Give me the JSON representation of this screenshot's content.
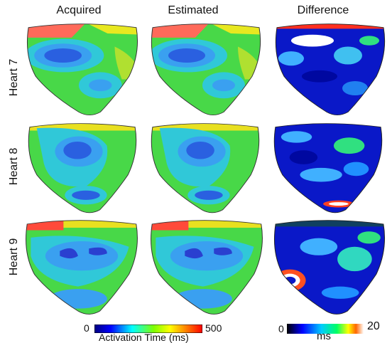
{
  "columns": [
    "Acquired",
    "Estimated",
    "Difference"
  ],
  "rows": [
    "Heart 7",
    "Heart 8",
    "Heart 9"
  ],
  "colorbar_activation": {
    "min": "0",
    "max": "500",
    "title": "Activation Time (ms)"
  },
  "colorbar_difference": {
    "min": "0",
    "max": "20",
    "title": "ms"
  }
}
